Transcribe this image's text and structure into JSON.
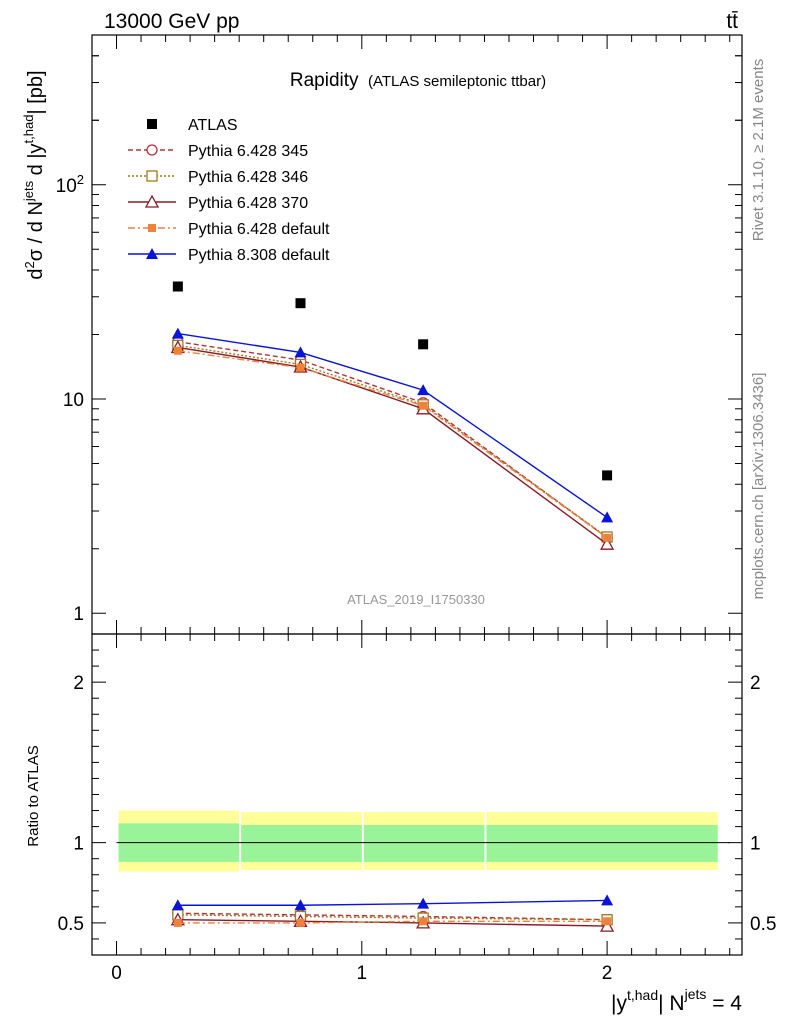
{
  "header": {
    "energy_label": "13000 GeV pp",
    "process_label": "tt̄",
    "rivet_label": "Rivet 3.1.10, ≥ 2.1M events",
    "mcplots_label": "mcplots.cern.ch [arXiv:1306.3436]",
    "analysis_id": "ATLAS_2019_I1750330"
  },
  "chart_data": {
    "type": "scatter",
    "title": "Rapidity",
    "subtitle": "(ATLAS semileptonic ttbar)",
    "x_ticks": [
      0,
      1,
      2
    ],
    "xlim": [
      -0.1,
      2.55
    ],
    "main_panel": {
      "y_scale": "log",
      "ylim": [
        0.8,
        500
      ],
      "y_tick_labels": [
        "1",
        "10",
        "10²"
      ],
      "y_ticks": [
        1,
        10,
        100
      ]
    },
    "ratio_panel": {
      "ylabel": "Ratio to ATLAS",
      "ylim": [
        0.3,
        2.3
      ],
      "y_ticks": [
        0.5,
        1,
        2
      ],
      "y_tick_labels": [
        "0.5",
        "1",
        "2"
      ],
      "band_x": [
        0,
        0.5,
        1.0,
        1.5,
        2.5
      ],
      "band_inner": [
        [
          0.88,
          1.12
        ],
        [
          0.88,
          1.11
        ],
        [
          0.88,
          1.11
        ],
        [
          0.88,
          1.11
        ]
      ],
      "band_outer": [
        [
          0.82,
          1.2
        ],
        [
          0.83,
          1.19
        ],
        [
          0.83,
          1.19
        ],
        [
          0.83,
          1.19
        ]
      ]
    },
    "data": {
      "name": "ATLAS",
      "x": [
        0.25,
        0.75,
        1.25,
        2.0
      ],
      "values": [
        33.5,
        28.0,
        18.0,
        4.4
      ]
    },
    "series": [
      {
        "name": "Pythia 6.428 345",
        "color": "#b5323b",
        "dash": "5,3",
        "marker": "circle-open",
        "x": [
          0.25,
          0.75,
          1.25,
          2.0
        ],
        "values": [
          18.5,
          15.2,
          9.6,
          2.25
        ],
        "ratio": [
          0.56,
          0.55,
          0.54,
          0.52
        ]
      },
      {
        "name": "Pythia 6.428 346",
        "color": "#a07820",
        "dash": "2,2",
        "marker": "square-open",
        "x": [
          0.25,
          0.75,
          1.25,
          2.0
        ],
        "values": [
          17.8,
          14.5,
          9.4,
          2.27
        ],
        "ratio": [
          0.55,
          0.54,
          0.53,
          0.52
        ]
      },
      {
        "name": "Pythia 6.428 370",
        "color": "#8b1a26",
        "dash": "",
        "marker": "triangle-open",
        "x": [
          0.25,
          0.75,
          1.25,
          2.0
        ],
        "values": [
          17.4,
          14.1,
          9.0,
          2.1
        ],
        "ratio": [
          0.52,
          0.51,
          0.5,
          0.48
        ]
      },
      {
        "name": "Pythia 6.428 default",
        "color": "#f0803a",
        "dash": "7,3,2,3",
        "marker": "square-filled",
        "x": [
          0.25,
          0.75,
          1.25,
          2.0
        ],
        "values": [
          16.8,
          14.0,
          9.3,
          2.25
        ],
        "ratio": [
          0.5,
          0.5,
          0.51,
          0.51
        ]
      },
      {
        "name": "Pythia 8.308 default",
        "color": "#0a14d8",
        "dash": "",
        "marker": "triangle-filled",
        "x": [
          0.25,
          0.75,
          1.25,
          2.0
        ],
        "values": [
          20.2,
          16.5,
          11.0,
          2.8
        ],
        "ratio": [
          0.61,
          0.61,
          0.62,
          0.64
        ]
      }
    ]
  }
}
